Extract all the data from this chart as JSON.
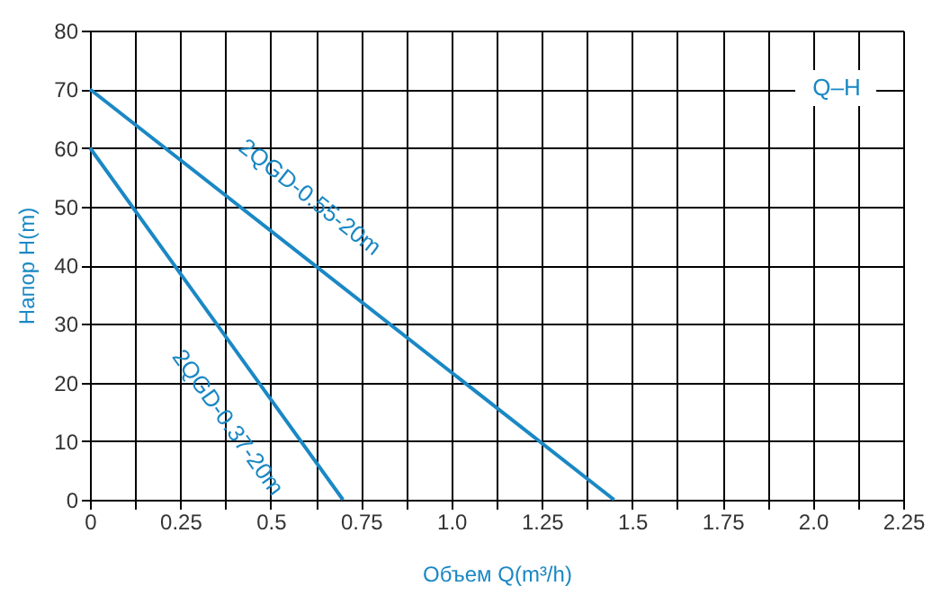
{
  "chart_data": {
    "type": "line",
    "xlabel": "Объем Q(m³/h)",
    "ylabel": "Напор H(m)",
    "annotations": [
      "Q–H"
    ],
    "series": [
      {
        "name": "2QGD-0.55-20m",
        "color": "#1a88c4",
        "x": [
          0,
          1.45
        ],
        "values": [
          70,
          0
        ]
      },
      {
        "name": "2QGD-0.37-20m",
        "color": "#1a88c4",
        "x": [
          0,
          0.7
        ],
        "values": [
          60,
          0
        ]
      }
    ],
    "xlim": [
      0,
      2.25
    ],
    "ylim": [
      0,
      80
    ],
    "xticks": [
      0,
      {
        "value": 0.125,
        "label": null
      },
      0.25,
      {
        "value": 0.375,
        "label": null
      },
      0.5,
      {
        "value": 0.625,
        "label": null
      },
      0.75,
      {
        "value": 0.875,
        "label": null
      },
      {
        "value": 1,
        "label": "1.0"
      },
      {
        "value": 1.125,
        "label": null
      },
      1.25,
      {
        "value": 1.375,
        "label": null
      },
      1.5,
      {
        "value": 1.625,
        "label": null
      },
      1.75,
      {
        "value": 1.875,
        "label": null
      },
      {
        "value": 2,
        "label": "2.0"
      },
      {
        "value": 2.125,
        "label": null
      },
      2.25
    ],
    "yticks": [
      0,
      10,
      20,
      30,
      40,
      50,
      60,
      70,
      80
    ],
    "grid": true,
    "marker": "none",
    "line_style": "solid"
  }
}
